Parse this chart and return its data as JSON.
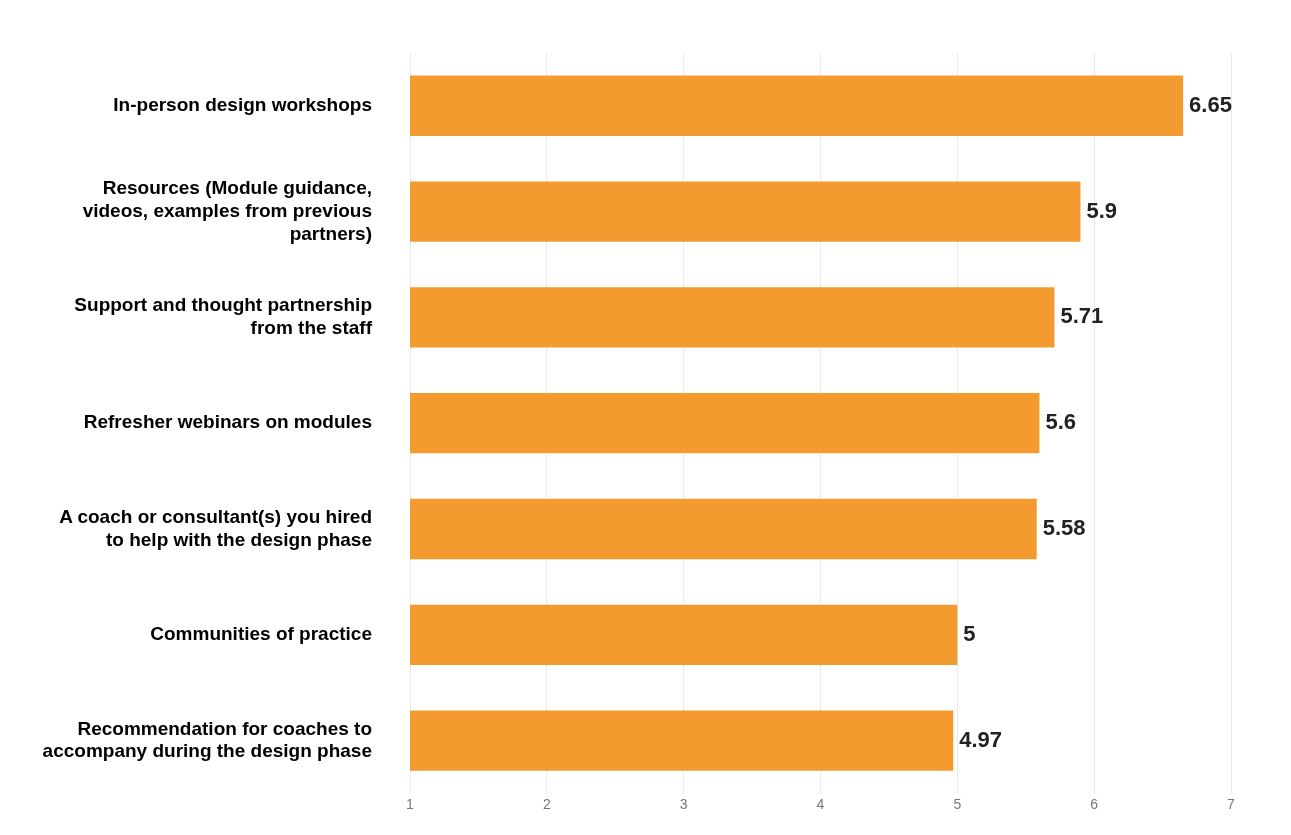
{
  "chart_data": {
    "type": "bar",
    "orientation": "horizontal",
    "categories": [
      "In-person design workshops",
      "Resources (Module guidance, videos, examples from previous partners)",
      "Support and thought partnership from the staff",
      "Refresher webinars on modules",
      "A coach or consultant(s) you hired to help with the design phase",
      "Communities of practice",
      "Recommendation for coaches to accompany during the design phase"
    ],
    "values": [
      6.65,
      5.9,
      5.71,
      5.6,
      5.58,
      5,
      4.97
    ],
    "color": "#f39b2e",
    "xlim": [
      1,
      7
    ],
    "xticks": [
      1,
      2,
      3,
      4,
      5,
      6,
      7
    ],
    "grid": "x",
    "data_labels": true
  }
}
